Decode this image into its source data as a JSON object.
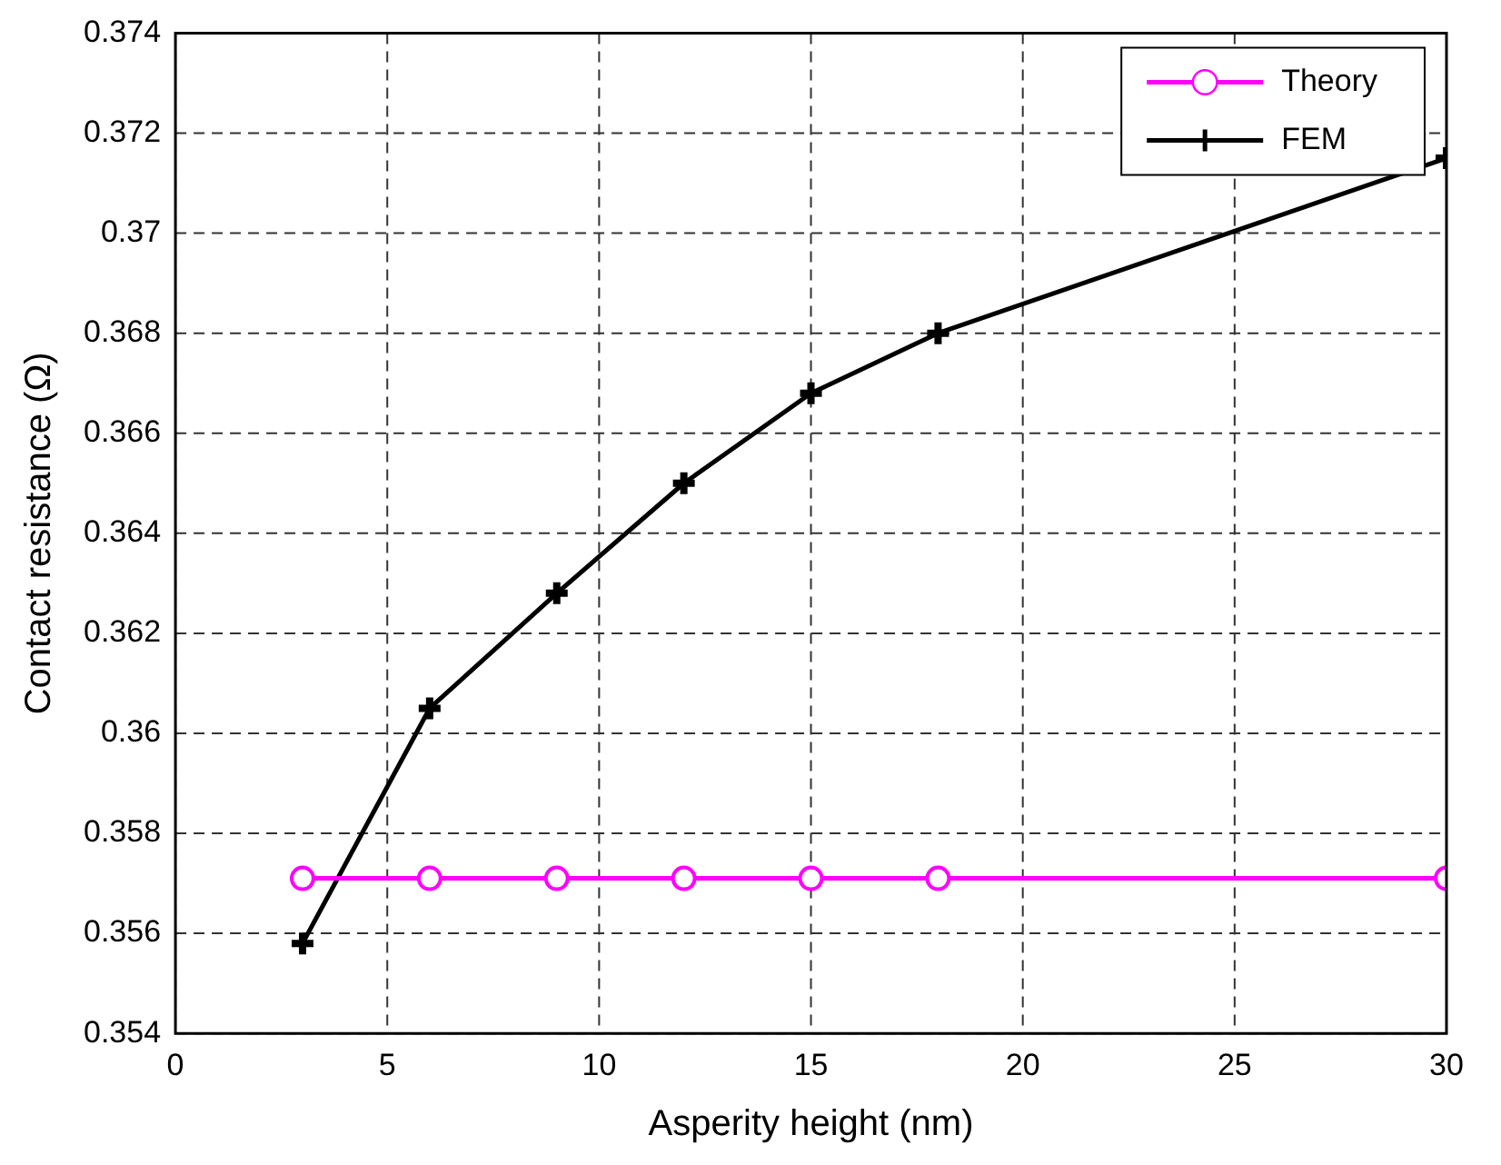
{
  "chart_data": {
    "type": "line",
    "xlabel": "Asperity height (nm)",
    "ylabel": "Contact resistance (Ω)",
    "x": [
      3,
      6,
      9,
      12,
      15,
      18,
      30
    ],
    "series": [
      {
        "name": "Theory",
        "color": "#ff00ff",
        "marker": "circle",
        "values": [
          0.3571,
          0.3571,
          0.3571,
          0.3571,
          0.3571,
          0.3571,
          0.3571
        ]
      },
      {
        "name": "FEM",
        "color": "#000000",
        "marker": "cross",
        "values": [
          0.3558,
          0.3605,
          0.3628,
          0.365,
          0.3668,
          0.368,
          0.3715
        ]
      }
    ],
    "xlim": [
      0,
      30
    ],
    "xticks": [
      0,
      5,
      10,
      15,
      20,
      25,
      30
    ],
    "ylim": [
      0.354,
      0.374
    ],
    "yticks": [
      0.354,
      0.356,
      0.358,
      0.36,
      0.362,
      0.364,
      0.366,
      0.368,
      0.37,
      0.372,
      0.374
    ],
    "grid": true,
    "legend": "top right",
    "line_style": "solid"
  }
}
